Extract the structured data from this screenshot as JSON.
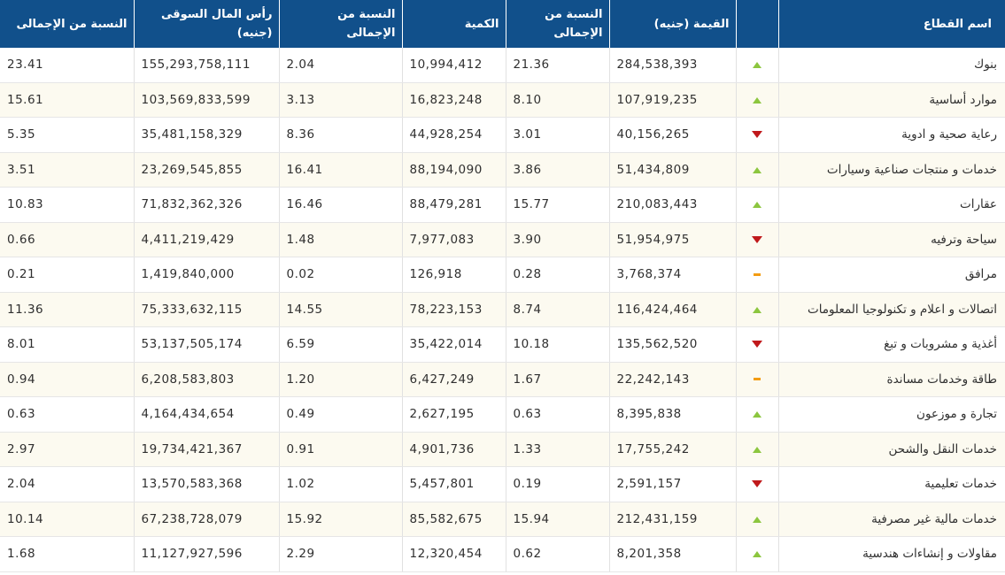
{
  "header": {
    "sector": "اسم القطاع",
    "indicator": "",
    "value": "القيمة (جنيه)",
    "value_pct_line1": "النسبة من",
    "value_pct_line2": "الإجمالى",
    "quantity": "الكمية",
    "quantity_pct": "النسبة من الإجمالى",
    "market_cap_line1": "رأس المال السوقى",
    "market_cap_line2": "(جنيه)",
    "market_cap_pct": "النسبة من الإجمالى"
  },
  "colors": {
    "header_bg": "#11508b",
    "up": "#8cc63f",
    "down": "#c0191b",
    "flat": "#f39c12",
    "row_alt": "#fcfaf0"
  },
  "rows": [
    {
      "sector": "بنوك",
      "trend": "up",
      "value": "284,538,393",
      "value_pct": "21.36",
      "quantity": "10,994,412",
      "quantity_pct": "2.04",
      "market_cap": "155,293,758,111",
      "market_cap_pct": "23.41"
    },
    {
      "sector": "موارد أساسية",
      "trend": "up",
      "value": "107,919,235",
      "value_pct": "8.10",
      "quantity": "16,823,248",
      "quantity_pct": "3.13",
      "market_cap": "103,569,833,599",
      "market_cap_pct": "15.61"
    },
    {
      "sector": "رعاية صحية و ادوية",
      "trend": "down",
      "value": "40,156,265",
      "value_pct": "3.01",
      "quantity": "44,928,254",
      "quantity_pct": "8.36",
      "market_cap": "35,481,158,329",
      "market_cap_pct": "5.35"
    },
    {
      "sector": "خدمات و منتجات صناعية وسيارات",
      "trend": "up",
      "value": "51,434,809",
      "value_pct": "3.86",
      "quantity": "88,194,090",
      "quantity_pct": "16.41",
      "market_cap": "23,269,545,855",
      "market_cap_pct": "3.51"
    },
    {
      "sector": "عقارات",
      "trend": "up",
      "value": "210,083,443",
      "value_pct": "15.77",
      "quantity": "88,479,281",
      "quantity_pct": "16.46",
      "market_cap": "71,832,362,326",
      "market_cap_pct": "10.83"
    },
    {
      "sector": "سياحة وترفيه",
      "trend": "down",
      "value": "51,954,975",
      "value_pct": "3.90",
      "quantity": "7,977,083",
      "quantity_pct": "1.48",
      "market_cap": "4,411,219,429",
      "market_cap_pct": "0.66"
    },
    {
      "sector": "مرافق",
      "trend": "flat",
      "value": "3,768,374",
      "value_pct": "0.28",
      "quantity": "126,918",
      "quantity_pct": "0.02",
      "market_cap": "1,419,840,000",
      "market_cap_pct": "0.21"
    },
    {
      "sector": "اتصالات و اعلام و تكنولوجيا المعلومات",
      "trend": "up",
      "value": "116,424,464",
      "value_pct": "8.74",
      "quantity": "78,223,153",
      "quantity_pct": "14.55",
      "market_cap": "75,333,632,115",
      "market_cap_pct": "11.36"
    },
    {
      "sector": "أغذية و مشروبات و تبغ",
      "trend": "down",
      "value": "135,562,520",
      "value_pct": "10.18",
      "quantity": "35,422,014",
      "quantity_pct": "6.59",
      "market_cap": "53,137,505,174",
      "market_cap_pct": "8.01"
    },
    {
      "sector": "طاقة وخدمات مساندة",
      "trend": "flat",
      "value": "22,242,143",
      "value_pct": "1.67",
      "quantity": "6,427,249",
      "quantity_pct": "1.20",
      "market_cap": "6,208,583,803",
      "market_cap_pct": "0.94"
    },
    {
      "sector": "تجارة و موزعون",
      "trend": "up",
      "value": "8,395,838",
      "value_pct": "0.63",
      "quantity": "2,627,195",
      "quantity_pct": "0.49",
      "market_cap": "4,164,434,654",
      "market_cap_pct": "0.63"
    },
    {
      "sector": "خدمات النقل والشحن",
      "trend": "up",
      "value": "17,755,242",
      "value_pct": "1.33",
      "quantity": "4,901,736",
      "quantity_pct": "0.91",
      "market_cap": "19,734,421,367",
      "market_cap_pct": "2.97"
    },
    {
      "sector": "خدمات تعليمية",
      "trend": "down",
      "value": "2,591,157",
      "value_pct": "0.19",
      "quantity": "5,457,801",
      "quantity_pct": "1.02",
      "market_cap": "13,570,583,368",
      "market_cap_pct": "2.04"
    },
    {
      "sector": "خدمات مالية غير مصرفية",
      "trend": "up",
      "value": "212,431,159",
      "value_pct": "15.94",
      "quantity": "85,582,675",
      "quantity_pct": "15.92",
      "market_cap": "67,238,728,079",
      "market_cap_pct": "10.14"
    },
    {
      "sector": "مقاولات و إنشاءات هندسية",
      "trend": "up",
      "value": "8,201,358",
      "value_pct": "0.62",
      "quantity": "12,320,454",
      "quantity_pct": "2.29",
      "market_cap": "11,127,927,596",
      "market_cap_pct": "1.68"
    }
  ]
}
